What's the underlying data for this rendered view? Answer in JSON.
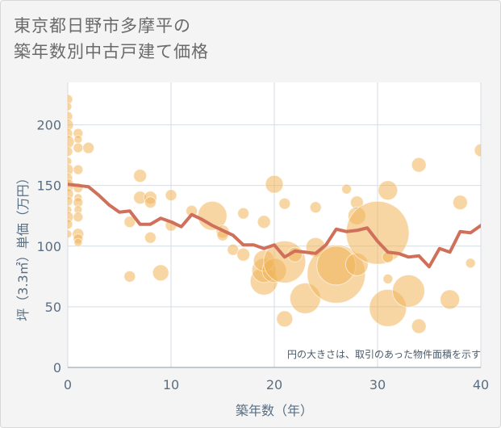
{
  "title": {
    "line1": "東京都日野市多摩平の",
    "line2": "築年数別中古戸建て価格"
  },
  "colors": {
    "background": "#f4f4f4",
    "plot_background": "#ffffff",
    "bubble": "#f0b45a",
    "line": "#d0705a",
    "grid": "#d4dde4",
    "axis_text": "#5a6e82"
  },
  "chart_data": {
    "type": "scatter",
    "xlabel": "築年数（年）",
    "ylabel": "坪（3.3㎡）単価（万円）",
    "xlim": [
      0,
      40
    ],
    "ylim": [
      0,
      235
    ],
    "x_ticks": [
      0,
      10,
      20,
      30,
      40
    ],
    "y_ticks": [
      0,
      50,
      100,
      150,
      200
    ],
    "grid": true,
    "annotation": "円の大きさは、取引のあった物件面積を示す",
    "line_series": {
      "x": [
        0,
        1,
        2,
        3,
        4,
        5,
        6,
        7,
        8,
        9,
        10,
        11,
        12,
        13,
        14,
        15,
        16,
        17,
        18,
        19,
        20,
        21,
        22,
        23,
        24,
        25,
        26,
        27,
        28,
        29,
        30,
        31,
        32,
        33,
        34,
        35,
        36,
        37,
        38,
        39,
        40
      ],
      "y": [
        151,
        150,
        149,
        142,
        134,
        128,
        129,
        118,
        118,
        123,
        120,
        116,
        126,
        122,
        117,
        113,
        109,
        101,
        101,
        98,
        101,
        91,
        96,
        95,
        94,
        101,
        114,
        112,
        113,
        115,
        104,
        95,
        94,
        91,
        92,
        83,
        98,
        95,
        112,
        111,
        117
      ]
    },
    "bubbles": [
      {
        "x": 0,
        "y": 221,
        "r": 6
      },
      {
        "x": 0,
        "y": 215,
        "r": 5
      },
      {
        "x": 0,
        "y": 207,
        "r": 6
      },
      {
        "x": 0,
        "y": 200,
        "r": 7
      },
      {
        "x": 0,
        "y": 193,
        "r": 6
      },
      {
        "x": 0,
        "y": 186,
        "r": 8
      },
      {
        "x": 0,
        "y": 178,
        "r": 6
      },
      {
        "x": 0,
        "y": 170,
        "r": 5
      },
      {
        "x": 0,
        "y": 163,
        "r": 7
      },
      {
        "x": 0,
        "y": 156,
        "r": 6
      },
      {
        "x": 0,
        "y": 150,
        "r": 8
      },
      {
        "x": 0,
        "y": 143,
        "r": 7
      },
      {
        "x": 0,
        "y": 137,
        "r": 6
      },
      {
        "x": 0,
        "y": 130,
        "r": 5
      },
      {
        "x": 0,
        "y": 124,
        "r": 7
      },
      {
        "x": 0,
        "y": 118,
        "r": 6
      },
      {
        "x": 0,
        "y": 110,
        "r": 5
      },
      {
        "x": 1,
        "y": 193,
        "r": 6
      },
      {
        "x": 1,
        "y": 188,
        "r": 5
      },
      {
        "x": 1,
        "y": 181,
        "r": 6
      },
      {
        "x": 1,
        "y": 163,
        "r": 6
      },
      {
        "x": 1,
        "y": 148,
        "r": 6
      },
      {
        "x": 1,
        "y": 140,
        "r": 5
      },
      {
        "x": 1,
        "y": 136,
        "r": 6
      },
      {
        "x": 1,
        "y": 130,
        "r": 5
      },
      {
        "x": 1,
        "y": 124,
        "r": 6
      },
      {
        "x": 1,
        "y": 110,
        "r": 7
      },
      {
        "x": 1,
        "y": 106,
        "r": 6
      },
      {
        "x": 1,
        "y": 103,
        "r": 5
      },
      {
        "x": 2,
        "y": 181,
        "r": 7
      },
      {
        "x": 6,
        "y": 75,
        "r": 7
      },
      {
        "x": 6,
        "y": 120,
        "r": 7
      },
      {
        "x": 7,
        "y": 158,
        "r": 8
      },
      {
        "x": 7,
        "y": 140,
        "r": 8
      },
      {
        "x": 8,
        "y": 140,
        "r": 8
      },
      {
        "x": 8,
        "y": 136,
        "r": 7
      },
      {
        "x": 8,
        "y": 107,
        "r": 7
      },
      {
        "x": 9,
        "y": 78,
        "r": 10
      },
      {
        "x": 10,
        "y": 142,
        "r": 7
      },
      {
        "x": 10,
        "y": 117,
        "r": 7
      },
      {
        "x": 12,
        "y": 129,
        "r": 7
      },
      {
        "x": 14,
        "y": 125,
        "r": 18
      },
      {
        "x": 15,
        "y": 112,
        "r": 8
      },
      {
        "x": 15,
        "y": 109,
        "r": 7
      },
      {
        "x": 16,
        "y": 97,
        "r": 7
      },
      {
        "x": 17,
        "y": 127,
        "r": 7
      },
      {
        "x": 17,
        "y": 93,
        "r": 8
      },
      {
        "x": 19,
        "y": 120,
        "r": 8
      },
      {
        "x": 19,
        "y": 71,
        "r": 17
      },
      {
        "x": 19,
        "y": 80,
        "r": 15
      },
      {
        "x": 19,
        "y": 88,
        "r": 13
      },
      {
        "x": 20,
        "y": 151,
        "r": 11
      },
      {
        "x": 20,
        "y": 80,
        "r": 15
      },
      {
        "x": 21,
        "y": 135,
        "r": 7
      },
      {
        "x": 21,
        "y": 87,
        "r": 26
      },
      {
        "x": 21,
        "y": 40,
        "r": 10
      },
      {
        "x": 22,
        "y": 93,
        "r": 9
      },
      {
        "x": 23,
        "y": 57,
        "r": 19
      },
      {
        "x": 24,
        "y": 132,
        "r": 7
      },
      {
        "x": 24,
        "y": 99,
        "r": 12
      },
      {
        "x": 26,
        "y": 77,
        "r": 36
      },
      {
        "x": 26,
        "y": 84,
        "r": 24
      },
      {
        "x": 27,
        "y": 147,
        "r": 6
      },
      {
        "x": 28,
        "y": 136,
        "r": 8
      },
      {
        "x": 28,
        "y": 125,
        "r": 11
      },
      {
        "x": 28,
        "y": 85,
        "r": 14
      },
      {
        "x": 30,
        "y": 111,
        "r": 39
      },
      {
        "x": 31,
        "y": 146,
        "r": 12
      },
      {
        "x": 31,
        "y": 91,
        "r": 7
      },
      {
        "x": 31,
        "y": 73,
        "r": 6
      },
      {
        "x": 31,
        "y": 49,
        "r": 23
      },
      {
        "x": 33,
        "y": 63,
        "r": 20
      },
      {
        "x": 34,
        "y": 167,
        "r": 9
      },
      {
        "x": 34,
        "y": 34,
        "r": 9
      },
      {
        "x": 37,
        "y": 56,
        "r": 12
      },
      {
        "x": 38,
        "y": 136,
        "r": 9
      },
      {
        "x": 39,
        "y": 86,
        "r": 6
      },
      {
        "x": 40,
        "y": 179,
        "r": 8
      }
    ]
  }
}
